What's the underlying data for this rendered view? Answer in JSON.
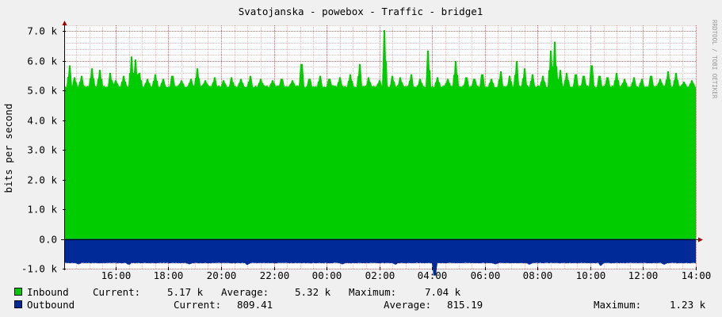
{
  "chart_data": {
    "type": "area",
    "title": "Svatojanska - powebox - Traffic - bridge1",
    "ylabel": "bits per second",
    "watermark": "RRDTOOL / TOBI OETIKER",
    "ylim": [
      -1000,
      7200
    ],
    "y_ticks": [
      -1000,
      0,
      1000,
      2000,
      3000,
      4000,
      5000,
      6000,
      7000
    ],
    "y_tick_labels": [
      "-1.0 k",
      "0.0",
      "1.0 k",
      "2.0 k",
      "3.0 k",
      "4.0 k",
      "5.0 k",
      "6.0 k",
      "7.0 k"
    ],
    "x_ticks": [
      "16:00",
      "18:00",
      "20:00",
      "22:00",
      "00:00",
      "02:00",
      "04:00",
      "06:00",
      "08:00",
      "10:00",
      "12:00",
      "14:00"
    ],
    "x_tick_hours": [
      16,
      18,
      20,
      22,
      24,
      26,
      28,
      30,
      32,
      34,
      36,
      38
    ],
    "x_range_hours": [
      14.05,
      38.0
    ],
    "grid": true,
    "series": [
      {
        "name": "Inbound",
        "color": "#00cc00",
        "baseline": 5150,
        "spikes": [
          {
            "t": 14.25,
            "v": 5850
          },
          {
            "t": 14.45,
            "v": 5450
          },
          {
            "t": 14.7,
            "v": 5500
          },
          {
            "t": 15.1,
            "v": 5750
          },
          {
            "t": 15.4,
            "v": 5700
          },
          {
            "t": 15.8,
            "v": 5600
          },
          {
            "t": 16.0,
            "v": 5350
          },
          {
            "t": 16.3,
            "v": 5500
          },
          {
            "t": 16.6,
            "v": 6150
          },
          {
            "t": 16.75,
            "v": 6050
          },
          {
            "t": 16.9,
            "v": 5600
          },
          {
            "t": 17.2,
            "v": 5400
          },
          {
            "t": 17.5,
            "v": 5550
          },
          {
            "t": 17.8,
            "v": 5400
          },
          {
            "t": 18.15,
            "v": 5500
          },
          {
            "t": 18.5,
            "v": 5350
          },
          {
            "t": 18.85,
            "v": 5400
          },
          {
            "t": 19.1,
            "v": 5750
          },
          {
            "t": 19.4,
            "v": 5350
          },
          {
            "t": 19.75,
            "v": 5450
          },
          {
            "t": 20.1,
            "v": 5350
          },
          {
            "t": 20.4,
            "v": 5450
          },
          {
            "t": 20.75,
            "v": 5400
          },
          {
            "t": 21.1,
            "v": 5500
          },
          {
            "t": 21.5,
            "v": 5400
          },
          {
            "t": 21.95,
            "v": 5350
          },
          {
            "t": 22.3,
            "v": 5400
          },
          {
            "t": 22.7,
            "v": 5350
          },
          {
            "t": 23.05,
            "v": 5900
          },
          {
            "t": 23.35,
            "v": 5400
          },
          {
            "t": 23.75,
            "v": 5500
          },
          {
            "t": 24.1,
            "v": 5400
          },
          {
            "t": 24.5,
            "v": 5450
          },
          {
            "t": 24.9,
            "v": 5550
          },
          {
            "t": 25.25,
            "v": 5900
          },
          {
            "t": 25.6,
            "v": 5450
          },
          {
            "t": 26.0,
            "v": 5350
          },
          {
            "t": 26.2,
            "v": 7040
          },
          {
            "t": 26.5,
            "v": 5500
          },
          {
            "t": 26.8,
            "v": 5450
          },
          {
            "t": 27.2,
            "v": 5550
          },
          {
            "t": 27.55,
            "v": 5400
          },
          {
            "t": 27.85,
            "v": 6350
          },
          {
            "t": 28.2,
            "v": 5450
          },
          {
            "t": 28.6,
            "v": 5400
          },
          {
            "t": 28.9,
            "v": 6000
          },
          {
            "t": 29.3,
            "v": 5450
          },
          {
            "t": 29.6,
            "v": 5400
          },
          {
            "t": 29.9,
            "v": 5550
          },
          {
            "t": 30.25,
            "v": 5400
          },
          {
            "t": 30.6,
            "v": 5650
          },
          {
            "t": 30.95,
            "v": 5500
          },
          {
            "t": 31.2,
            "v": 6000
          },
          {
            "t": 31.5,
            "v": 5750
          },
          {
            "t": 31.8,
            "v": 5550
          },
          {
            "t": 32.2,
            "v": 5500
          },
          {
            "t": 32.5,
            "v": 6350
          },
          {
            "t": 32.65,
            "v": 6650
          },
          {
            "t": 32.85,
            "v": 5700
          },
          {
            "t": 33.1,
            "v": 5600
          },
          {
            "t": 33.45,
            "v": 5550
          },
          {
            "t": 33.75,
            "v": 5500
          },
          {
            "t": 34.05,
            "v": 5850
          },
          {
            "t": 34.35,
            "v": 5500
          },
          {
            "t": 34.65,
            "v": 5450
          },
          {
            "t": 35.0,
            "v": 5600
          },
          {
            "t": 35.3,
            "v": 5400
          },
          {
            "t": 35.65,
            "v": 5450
          },
          {
            "t": 35.95,
            "v": 5400
          },
          {
            "t": 36.3,
            "v": 5500
          },
          {
            "t": 36.65,
            "v": 5400
          },
          {
            "t": 36.95,
            "v": 5650
          },
          {
            "t": 37.25,
            "v": 5600
          },
          {
            "t": 37.55,
            "v": 5300
          },
          {
            "t": 37.85,
            "v": 5350
          }
        ]
      },
      {
        "name": "Outbound",
        "color": "#002a97",
        "baseline": -810,
        "dips": [
          {
            "t": 14.6,
            "v": -850
          },
          {
            "t": 16.5,
            "v": -860
          },
          {
            "t": 18.8,
            "v": -850
          },
          {
            "t": 21.0,
            "v": -870
          },
          {
            "t": 24.6,
            "v": -850
          },
          {
            "t": 26.6,
            "v": -860
          },
          {
            "t": 28.1,
            "v": -1230
          },
          {
            "t": 30.4,
            "v": -850
          },
          {
            "t": 31.7,
            "v": -860
          },
          {
            "t": 34.4,
            "v": -900
          },
          {
            "t": 36.8,
            "v": -860
          }
        ]
      }
    ]
  },
  "legend": {
    "inbound": {
      "label": "Inbound",
      "current_label": "Current:",
      "current": "5.17 k",
      "average_label": "Average:",
      "average": "5.32 k",
      "maximum_label": "Maximum:",
      "maximum": "7.04 k",
      "color": "#00cc00"
    },
    "outbound": {
      "label": "Outbound",
      "current_label": "Current:",
      "current": "809.41",
      "average_label": "Average:",
      "average": "815.19",
      "maximum_label": "Maximum:",
      "maximum": "1.23 k",
      "color": "#002a97"
    }
  }
}
